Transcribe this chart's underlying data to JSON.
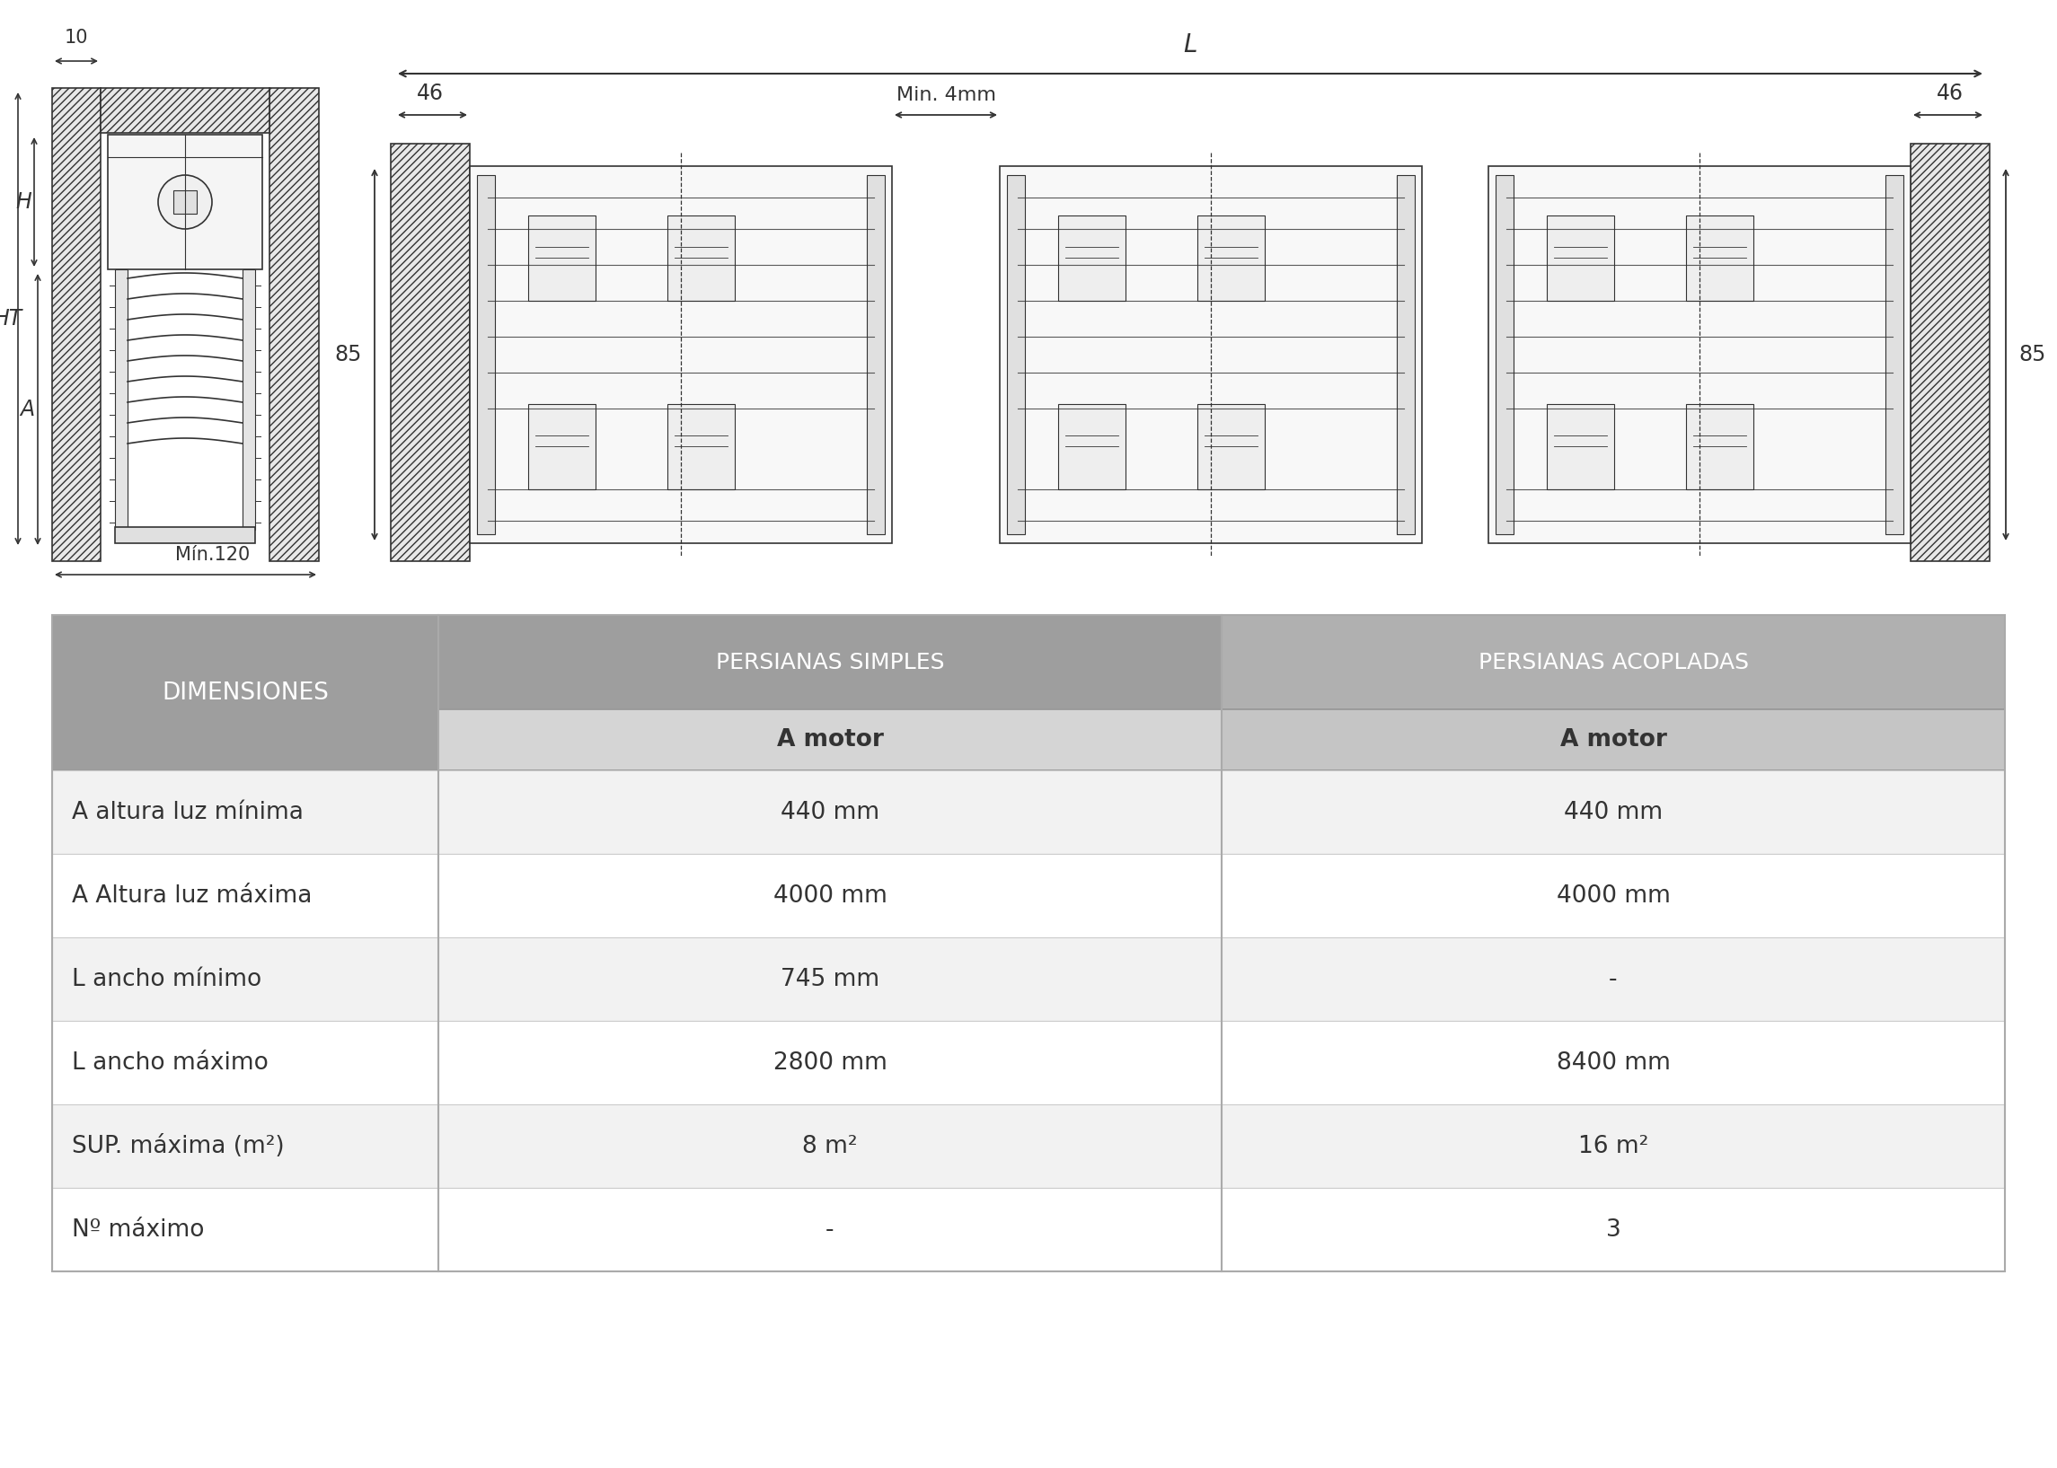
{
  "table_header_bg": "#9e9e9e",
  "table_subheader_bg": "#b0b0b0",
  "table_row_bg_light": "#f2f2f2",
  "table_row_bg_white": "#ffffff",
  "table_border_color": "#cccccc",
  "table_text_color": "#333333",
  "header_text_color": "#ffffff",
  "subheader_text_color": "#333333",
  "col0_header": "DIMENSIONES",
  "col1_header": "PERSIANAS SIMPLES",
  "col2_header": "PERSIANAS ACOPLADAS",
  "subheader": "A motor",
  "rows": [
    [
      "A altura luz mínima",
      "440 mm",
      "440 mm"
    ],
    [
      "A Altura luz máxima",
      "4000 mm",
      "4000 mm"
    ],
    [
      "L ancho mínimo",
      "745 mm",
      "-"
    ],
    [
      "L ancho máximo",
      "2800 mm",
      "8400 mm"
    ],
    [
      "SUP. máxima (m²)",
      "8 m²",
      "16 m²"
    ],
    [
      "Nº máximo",
      "-",
      "3"
    ]
  ],
  "background_color": "#ffffff",
  "diagram_line_color": "#333333"
}
